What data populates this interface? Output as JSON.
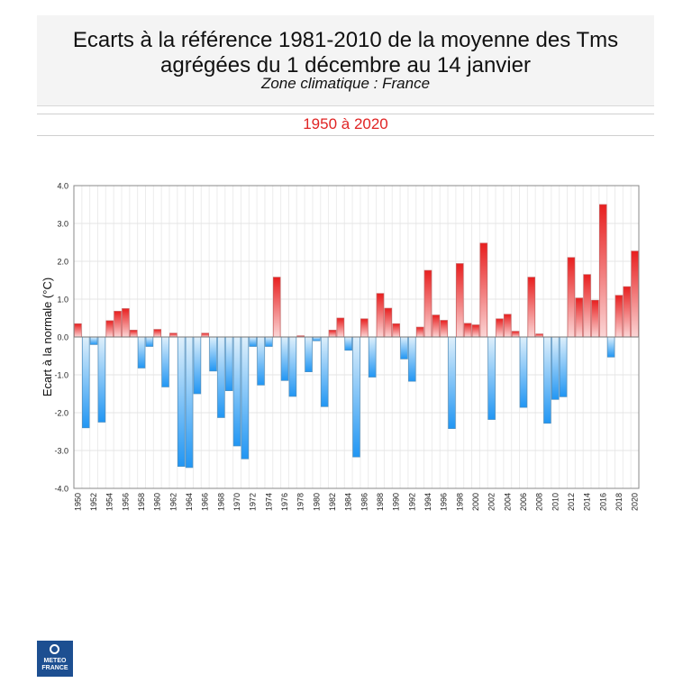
{
  "header": {
    "title": "Ecarts à la référence 1981-2010 de la moyenne des Tms agrégées du 1 décembre au 14 janvier",
    "subtitle": "Zone climatique : France",
    "period": "1950 à 2020"
  },
  "colors": {
    "positive_light": "#fbd6d6",
    "positive_dark": "#e81f1f",
    "negative_light": "#dff0fb",
    "negative_dark": "#2196f3"
  },
  "logo": {
    "text_line1": "METEO",
    "text_line2": "FRANCE"
  },
  "chart_data": {
    "type": "bar",
    "ylabel": "Ecart à la normale (°C)",
    "ylim": [
      -4.0,
      4.0
    ],
    "yticks": [
      "-4.0",
      "-3.0",
      "-2.0",
      "-1.0",
      "0.0",
      "1.0",
      "2.0",
      "3.0",
      "4.0"
    ],
    "grid": true,
    "categories": [
      "1950",
      "1951",
      "1952",
      "1953",
      "1954",
      "1955",
      "1956",
      "1957",
      "1958",
      "1959",
      "1960",
      "1961",
      "1962",
      "1963",
      "1964",
      "1965",
      "1966",
      "1967",
      "1968",
      "1969",
      "1970",
      "1971",
      "1972",
      "1973",
      "1974",
      "1975",
      "1976",
      "1977",
      "1978",
      "1979",
      "1980",
      "1981",
      "1982",
      "1983",
      "1984",
      "1985",
      "1986",
      "1987",
      "1988",
      "1989",
      "1990",
      "1991",
      "1992",
      "1993",
      "1994",
      "1995",
      "1996",
      "1997",
      "1998",
      "1999",
      "2000",
      "2001",
      "2002",
      "2003",
      "2004",
      "2005",
      "2006",
      "2007",
      "2008",
      "2009",
      "2010",
      "2011",
      "2012",
      "2013",
      "2014",
      "2015",
      "2016",
      "2017",
      "2018",
      "2019",
      "2020"
    ],
    "values": [
      0.35,
      -2.4,
      -0.2,
      -2.25,
      0.43,
      0.68,
      0.75,
      0.18,
      -0.82,
      -0.25,
      0.2,
      -1.32,
      0.1,
      -3.42,
      -3.45,
      -1.5,
      0.1,
      -0.9,
      -2.13,
      -1.42,
      -2.88,
      -3.22,
      -0.25,
      -1.27,
      -0.25,
      1.58,
      -1.15,
      -1.57,
      0.03,
      -0.92,
      -0.1,
      -1.84,
      0.18,
      0.5,
      -0.35,
      -3.17,
      0.48,
      -1.06,
      1.15,
      0.76,
      0.35,
      -0.58,
      -1.17,
      0.26,
      1.76,
      0.58,
      0.44,
      -2.42,
      1.94,
      0.36,
      0.32,
      2.48,
      -2.18,
      0.48,
      0.6,
      0.15,
      -1.86,
      1.58,
      0.08,
      -2.28,
      -1.65,
      -1.58,
      2.1,
      1.03,
      1.65,
      0.97,
      3.5,
      -0.53,
      1.1,
      1.33,
      2.27
    ],
    "xtick_labels": [
      "1950",
      "1952",
      "1954",
      "1956",
      "1958",
      "1960",
      "1962",
      "1964",
      "1966",
      "1968",
      "1970",
      "1972",
      "1974",
      "1976",
      "1978",
      "1980",
      "1982",
      "1984",
      "1986",
      "1988",
      "1990",
      "1992",
      "1994",
      "1996",
      "1998",
      "2000",
      "2002",
      "2004",
      "2006",
      "2008",
      "2010",
      "2012",
      "2014",
      "2016",
      "2018",
      "2020"
    ]
  }
}
